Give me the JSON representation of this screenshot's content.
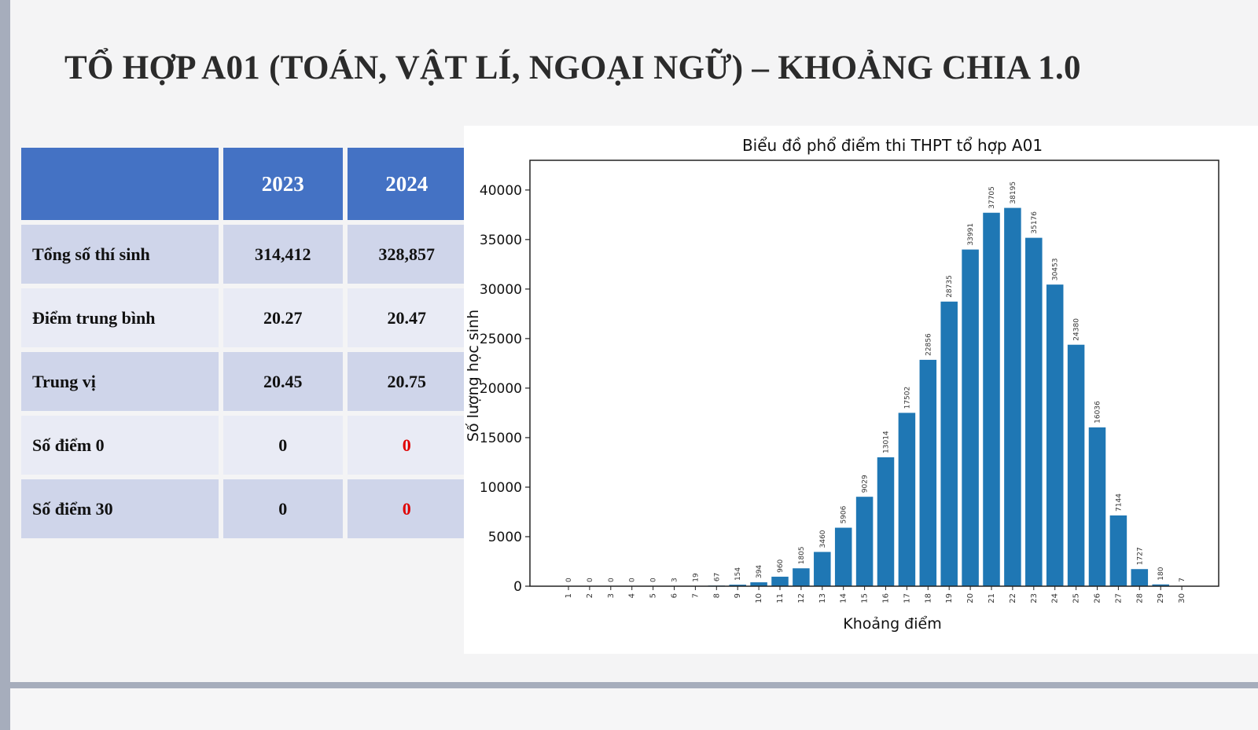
{
  "slide": {
    "title": "TỔ HỢP A01 (TOÁN, VẬT LÍ, NGOẠI NGỮ) – KHOẢNG CHIA 1.0"
  },
  "table": {
    "header": [
      "",
      "2023",
      "2024"
    ],
    "rows": [
      {
        "label": "Tổng số thí sinh",
        "v2023": "314,412",
        "v2024": "328,857"
      },
      {
        "label": "Điểm trung bình",
        "v2023": "20.27",
        "v2024": "20.47"
      },
      {
        "label": "Trung vị",
        "v2023": "20.45",
        "v2024": "20.75"
      },
      {
        "label": "Số điểm 0",
        "v2023": "0",
        "v2024": "0"
      },
      {
        "label": "Số điểm 30",
        "v2023": "0",
        "v2024": "0"
      }
    ],
    "highlight_color": "#e00000",
    "header_color": "#4472c4"
  },
  "chart_data": {
    "type": "bar",
    "title": "Biểu đồ phổ điểm thi THPT tổ hợp A01",
    "xlabel": "Khoảng điểm",
    "ylabel": "Số lượng học sinh",
    "categories": [
      "1",
      "2",
      "3",
      "4",
      "5",
      "6",
      "7",
      "8",
      "9",
      "10",
      "11",
      "12",
      "13",
      "14",
      "15",
      "16",
      "17",
      "18",
      "19",
      "20",
      "21",
      "22",
      "23",
      "24",
      "25",
      "26",
      "27",
      "28",
      "29",
      "30"
    ],
    "values": [
      0,
      0,
      0,
      0,
      0,
      3,
      19,
      67,
      154,
      394,
      960,
      1805,
      3460,
      5906,
      9029,
      13014,
      17502,
      22856,
      28735,
      33991,
      37705,
      38195,
      35176,
      30453,
      24380,
      16036,
      7144,
      1727,
      180,
      7
    ],
    "data_labels": [
      "0",
      "0",
      "0",
      "0",
      "0",
      "3",
      "19",
      "67",
      "154",
      "394",
      "960",
      "1805",
      "3460",
      "5906",
      "9029",
      "13014",
      "17502",
      "22856",
      "28735",
      "33991",
      "37705",
      "38195",
      "35176",
      "30453",
      "24380",
      "16036",
      "7144",
      "1727",
      "180",
      "7"
    ],
    "yticks": [
      "0",
      "5000",
      "10000",
      "15000",
      "20000",
      "25000",
      "30000",
      "35000",
      "40000"
    ],
    "ylim": [
      0,
      43000
    ],
    "bar_color": "#1f77b4",
    "grid": false,
    "legend": "none"
  }
}
